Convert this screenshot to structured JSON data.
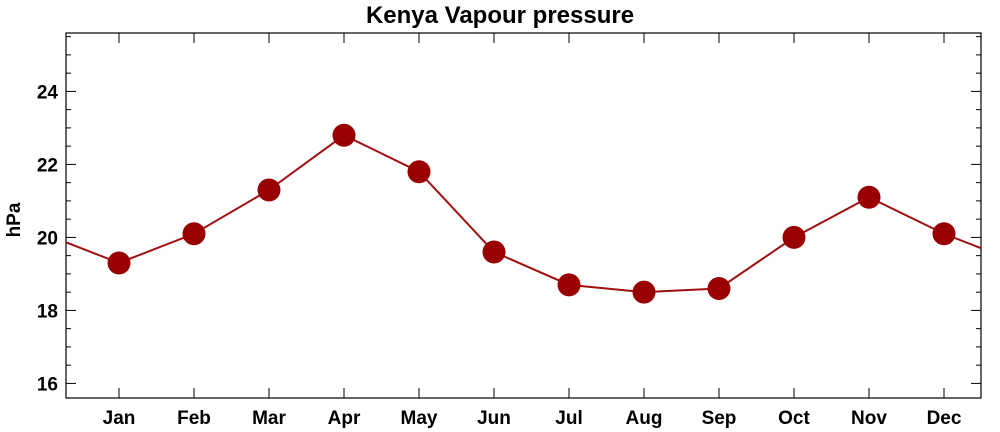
{
  "chart_data": {
    "type": "line",
    "title": "Kenya Vapour pressure",
    "xlabel": "",
    "ylabel": "hPa",
    "categories": [
      "Jan",
      "Feb",
      "Mar",
      "Apr",
      "May",
      "Jun",
      "Jul",
      "Aug",
      "Sep",
      "Oct",
      "Nov",
      "Dec"
    ],
    "series": [
      {
        "values": [
          19.3,
          20.1,
          21.3,
          22.8,
          21.8,
          19.6,
          18.7,
          18.5,
          18.6,
          20.0,
          21.1,
          20.1
        ]
      }
    ],
    "ylim": [
      15.6,
      25.6
    ],
    "yticks": [
      16,
      18,
      20,
      22,
      24
    ],
    "grid": false,
    "line_color": "#a01010",
    "marker_color": "#990000"
  }
}
